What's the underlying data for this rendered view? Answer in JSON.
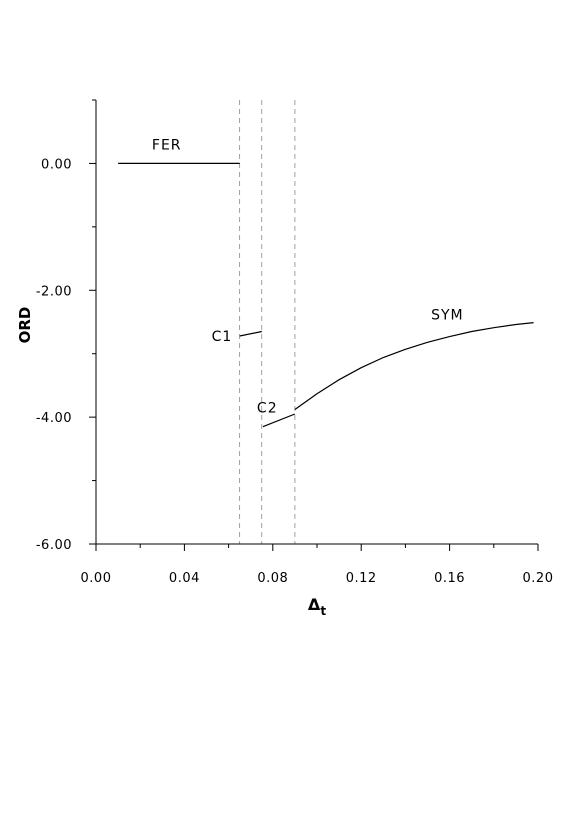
{
  "chart_data": {
    "type": "line",
    "title": "",
    "xlabel": "Δ",
    "xlabel_subscript": "t",
    "ylabel": "ORD",
    "xlim": [
      0.0,
      0.2
    ],
    "ylim": [
      -6.0,
      1.0
    ],
    "x_ticks": [
      {
        "value": 0.0,
        "label": "0.00"
      },
      {
        "value": 0.04,
        "label": "0.04"
      },
      {
        "value": 0.08,
        "label": "0.08"
      },
      {
        "value": 0.12,
        "label": "0.12"
      },
      {
        "value": 0.16,
        "label": "0.16"
      },
      {
        "value": 0.2,
        "label": "0.20"
      }
    ],
    "x_minor_ticks": [
      0.02,
      0.06,
      0.1,
      0.14,
      0.18
    ],
    "y_ticks": [
      {
        "value": 0.0,
        "label": "0.00"
      },
      {
        "value": -2.0,
        "label": "-2.00"
      },
      {
        "value": -4.0,
        "label": "-4.00"
      },
      {
        "value": -6.0,
        "label": "-6.00"
      }
    ],
    "y_minor_ticks": [
      1.0,
      -1.0,
      -3.0,
      -5.0
    ],
    "phase_boundaries": [
      0.065,
      0.075,
      0.09
    ],
    "grid": false,
    "series": [
      {
        "name": "FER",
        "label_at": [
          0.032,
          0.3
        ],
        "points": [
          [
            0.01,
            0.0
          ],
          [
            0.065,
            0.0
          ]
        ]
      },
      {
        "name": "C1",
        "label_at": [
          0.057,
          -2.72
        ],
        "points": [
          [
            0.065,
            -2.72
          ],
          [
            0.075,
            -2.65
          ]
        ]
      },
      {
        "name": "C2",
        "label_at": [
          0.0775,
          -3.85
        ],
        "points": [
          [
            0.0755,
            -4.15
          ],
          [
            0.09,
            -3.95
          ]
        ]
      },
      {
        "name": "SYM",
        "label_at": [
          0.159,
          -2.38
        ],
        "points": [
          [
            0.09,
            -3.88
          ],
          [
            0.1,
            -3.63
          ],
          [
            0.11,
            -3.41
          ],
          [
            0.12,
            -3.22
          ],
          [
            0.13,
            -3.06
          ],
          [
            0.14,
            -2.93
          ],
          [
            0.15,
            -2.82
          ],
          [
            0.16,
            -2.73
          ],
          [
            0.17,
            -2.65
          ],
          [
            0.18,
            -2.59
          ],
          [
            0.19,
            -2.54
          ],
          [
            0.198,
            -2.51
          ]
        ]
      }
    ]
  }
}
